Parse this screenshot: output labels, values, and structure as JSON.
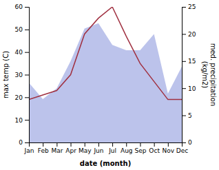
{
  "chart_data": {
    "type": "line",
    "categories": [
      "Jan",
      "Feb",
      "Mar",
      "Apr",
      "May",
      "Jun",
      "Jul",
      "Aug",
      "Sep",
      "Oct",
      "Nov",
      "Dec"
    ],
    "series": [
      {
        "type": "area",
        "axis": "y2",
        "color": "#b0b8e8",
        "values": [
          11,
          8,
          10,
          15,
          21,
          22,
          18,
          17,
          17,
          20,
          9,
          14
        ]
      },
      {
        "type": "line",
        "color": "#a03040",
        "values": [
          19,
          21,
          23,
          30,
          48,
          55,
          60,
          47,
          35,
          27,
          19,
          19
        ]
      }
    ],
    "xlabel": "date (month)",
    "ylabel": "max temp (C)",
    "y2label": "med. precipitation\n(kg/m2)",
    "ylim": [
      0,
      60
    ],
    "yticks": [
      0,
      10,
      20,
      30,
      40,
      50,
      60
    ],
    "y2lim": [
      0,
      25
    ],
    "y2ticks": [
      0,
      5,
      10,
      15,
      20,
      25
    ],
    "grid": false
  }
}
